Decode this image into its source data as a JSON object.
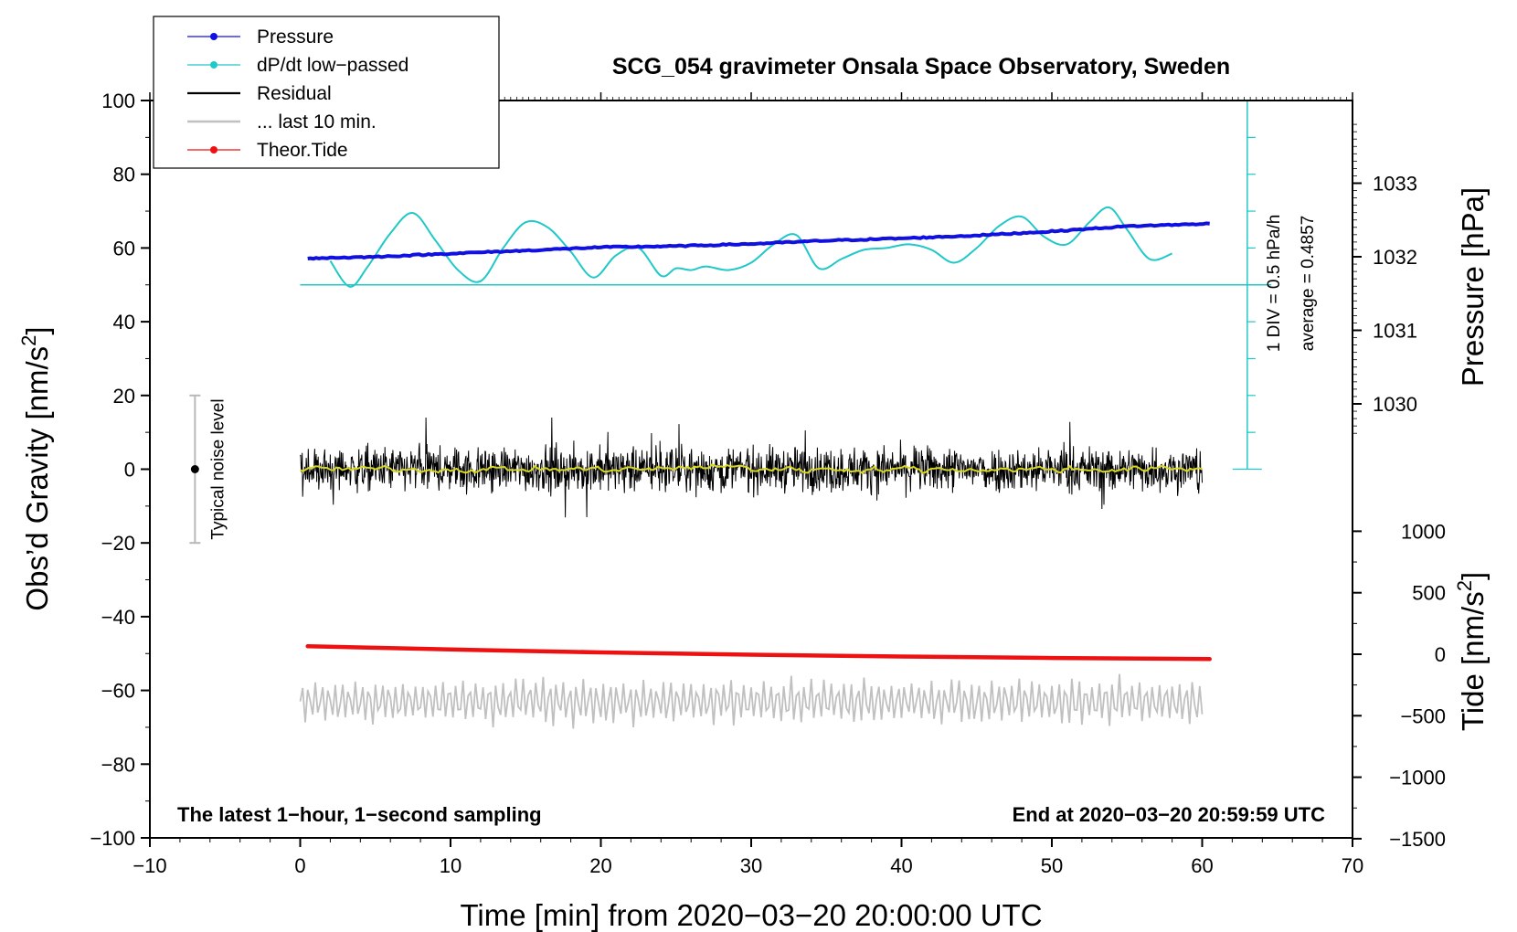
{
  "chart_data": {
    "type": "line",
    "title": "SCG_054 gravimeter Onsala Space Observatory, Sweden",
    "xlabel": "Time [min] from 2020−03−20 20:00:00 UTC",
    "ylabel_left_main": "Obs’d Gravity [nm/s",
    "ylabel_left_sup": "2",
    "ylabel_left_end": "]",
    "ylabel_right_pressure": "Pressure [hPa]",
    "ylabel_right_tide_main": "Tide [nm/s",
    "ylabel_right_tide_sup": "2",
    "ylabel_right_tide_end": "]",
    "xlim": [
      -10,
      70
    ],
    "ylim": [
      -100,
      100
    ],
    "pressure_axis_range": [
      1030,
      1033
    ],
    "tide_axis_range": [
      -1500,
      1000
    ],
    "x_ticks": [
      -10,
      0,
      10,
      20,
      30,
      40,
      50,
      60,
      70
    ],
    "x_tick_labels": [
      "−10",
      "0",
      "10",
      "20",
      "30",
      "40",
      "50",
      "60",
      "70"
    ],
    "y_ticks": [
      100,
      80,
      60,
      40,
      20,
      0,
      -20,
      -40,
      -60,
      -80,
      -100
    ],
    "y_tick_labels": [
      "100",
      "80",
      "60",
      "40",
      "20",
      "0",
      "−20",
      "−40",
      "−60",
      "−80",
      "−100"
    ],
    "pressure_ticks": [
      1033,
      1032,
      1031,
      1030
    ],
    "pressure_tick_labels": [
      "1033",
      "1032",
      "1031",
      "1030"
    ],
    "tide_ticks": [
      1000,
      500,
      0,
      -500,
      -1000,
      -1500
    ],
    "tide_tick_labels": [
      "1000",
      "500",
      "0",
      "−500",
      "−1000",
      "−1500"
    ],
    "legend": {
      "position": "top-left",
      "entries": [
        {
          "label": "Pressure",
          "color": "#1010e0",
          "marker": "dot"
        },
        {
          "label": "dP/dt low−passed",
          "color": "#20c8c8",
          "marker": "dot"
        },
        {
          "label": "Residual",
          "color": "#000000",
          "marker": "none"
        },
        {
          "label": "... last 10 min.",
          "color": "#c0c0c0",
          "marker": "none"
        },
        {
          "label": "Theor.Tide",
          "color": "#ee1111",
          "marker": "dot"
        }
      ]
    },
    "annotations": {
      "noise_level_label": "Typical noise level",
      "noise_level_x": -7,
      "noise_level_y_range": [
        -20,
        20
      ],
      "div_label": "1 DIV = 0.5 hPa/h",
      "average_label": "average = 0.4857",
      "dpdt_scale_x": 63,
      "dpdt_scale_y_range": [
        0,
        100
      ],
      "dpdt_scale_divisions": 10,
      "bottom_left_note": "The latest 1−hour, 1−second sampling",
      "bottom_right_note": "End at 2020−03−20 20:59:59 UTC"
    },
    "series": [
      {
        "name": "Pressure",
        "axis": "left-mapped",
        "color": "#1010e0",
        "x": [
          0.5,
          5,
          10,
          15,
          20,
          25,
          30,
          35,
          40,
          45,
          50,
          55,
          60.5
        ],
        "values": [
          57.2,
          57.6,
          58.5,
          59.3,
          60.2,
          60.5,
          61.1,
          62.0,
          62.6,
          63.4,
          64.5,
          65.9,
          66.6
        ]
      },
      {
        "name": "dP/dt low−passed",
        "axis": "left-mapped",
        "color": "#20c8c8",
        "baseline": 50,
        "x": [
          2,
          3.3,
          4.5,
          6,
          7.5,
          9,
          10.5,
          12,
          13.5,
          15,
          16.5,
          18,
          19.5,
          21,
          22.5,
          24,
          25,
          26,
          27,
          28.5,
          30,
          31.5,
          33,
          34.5,
          36,
          37.5,
          39,
          40.5,
          42,
          43.5,
          45,
          46.5,
          48,
          49.5,
          51,
          52.5,
          53.8,
          55,
          56.5,
          58
        ],
        "values": [
          56.5,
          49.5,
          55,
          64,
          69.5,
          62,
          54,
          51,
          60,
          67,
          65.5,
          59,
          52,
          58,
          60,
          52.5,
          54.5,
          54,
          55,
          54,
          56,
          61,
          63.5,
          54.5,
          57,
          59.5,
          60,
          61,
          59.5,
          56,
          60,
          66,
          68.5,
          63,
          61,
          67,
          71,
          65,
          57,
          58.5
        ]
      },
      {
        "name": "Residual",
        "color": "#000000",
        "x_range": [
          0,
          60
        ],
        "center": 0,
        "typical_amplitude": 4,
        "max_amplitude": 14
      },
      {
        "name": "Residual smoothed",
        "color": "#d8d820",
        "x_range": [
          0,
          60
        ],
        "center": 0
      },
      {
        "name": "Theor.Tide",
        "axis": "left-mapped",
        "color": "#ee1111",
        "x": [
          0.5,
          10,
          20,
          30,
          40,
          50,
          60.5
        ],
        "values": [
          -48,
          -48.9,
          -49.7,
          -50.3,
          -50.8,
          -51.2,
          -51.5
        ]
      },
      {
        "name": "... last 10 min.",
        "color": "#c0c0c0",
        "x_range": [
          0,
          60
        ],
        "center": -63,
        "typical_amplitude": 4,
        "max_amplitude": 10
      }
    ]
  }
}
